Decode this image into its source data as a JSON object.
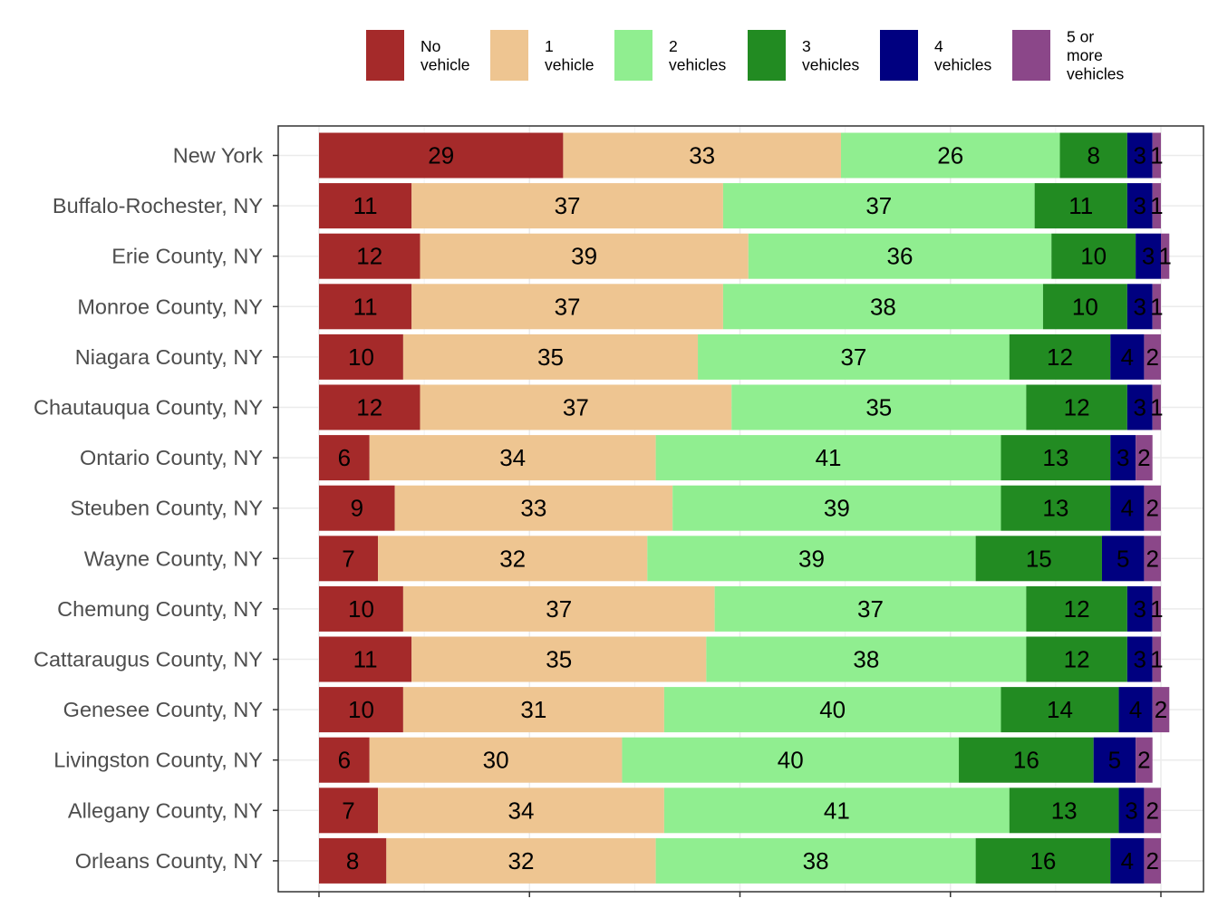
{
  "chart_data": {
    "type": "bar",
    "orientation": "horizontal",
    "stacked": true,
    "normalized_percent": true,
    "grid": true,
    "legend_position": "top",
    "categories": [
      "New York",
      "Buffalo-Rochester, NY",
      "Erie County, NY",
      "Monroe County, NY",
      "Niagara County, NY",
      "Chautauqua County, NY",
      "Ontario County, NY",
      "Steuben County, NY",
      "Wayne County, NY",
      "Chemung County, NY",
      "Cattaraugus County, NY",
      "Genesee County, NY",
      "Livingston County, NY",
      "Allegany County, NY",
      "Orleans County, NY"
    ],
    "series": [
      {
        "name": "No vehicle",
        "legend_lines": [
          "No",
          "vehicle"
        ],
        "color": "#A52A2A",
        "values": [
          29,
          11,
          12,
          11,
          10,
          12,
          6,
          9,
          7,
          10,
          11,
          10,
          6,
          7,
          8
        ]
      },
      {
        "name": "1 vehicle",
        "legend_lines": [
          "1",
          "vehicle"
        ],
        "color": "#EEC591",
        "values": [
          33,
          37,
          39,
          37,
          35,
          37,
          34,
          33,
          32,
          37,
          35,
          31,
          30,
          34,
          32
        ]
      },
      {
        "name": "2 vehicles",
        "legend_lines": [
          "2",
          "vehicles"
        ],
        "color": "#90EE90",
        "values": [
          26,
          37,
          36,
          38,
          37,
          35,
          41,
          39,
          39,
          37,
          38,
          40,
          40,
          41,
          38
        ]
      },
      {
        "name": "3 vehicles",
        "legend_lines": [
          "3",
          "vehicles"
        ],
        "color": "#228B22",
        "values": [
          8,
          11,
          10,
          10,
          12,
          12,
          13,
          13,
          15,
          12,
          12,
          14,
          16,
          13,
          16
        ]
      },
      {
        "name": "4 vehicles",
        "legend_lines": [
          "4",
          "vehicles"
        ],
        "color": "#000080",
        "values": [
          3,
          3,
          3,
          3,
          4,
          3,
          3,
          4,
          5,
          3,
          3,
          4,
          5,
          3,
          4
        ]
      },
      {
        "name": "5 or more vehicles",
        "legend_lines": [
          "5 or",
          "more",
          "vehicles"
        ],
        "color": "#8B4789",
        "values": [
          1,
          1,
          1,
          1,
          2,
          1,
          2,
          2,
          2,
          1,
          1,
          2,
          2,
          2,
          2
        ]
      }
    ]
  }
}
